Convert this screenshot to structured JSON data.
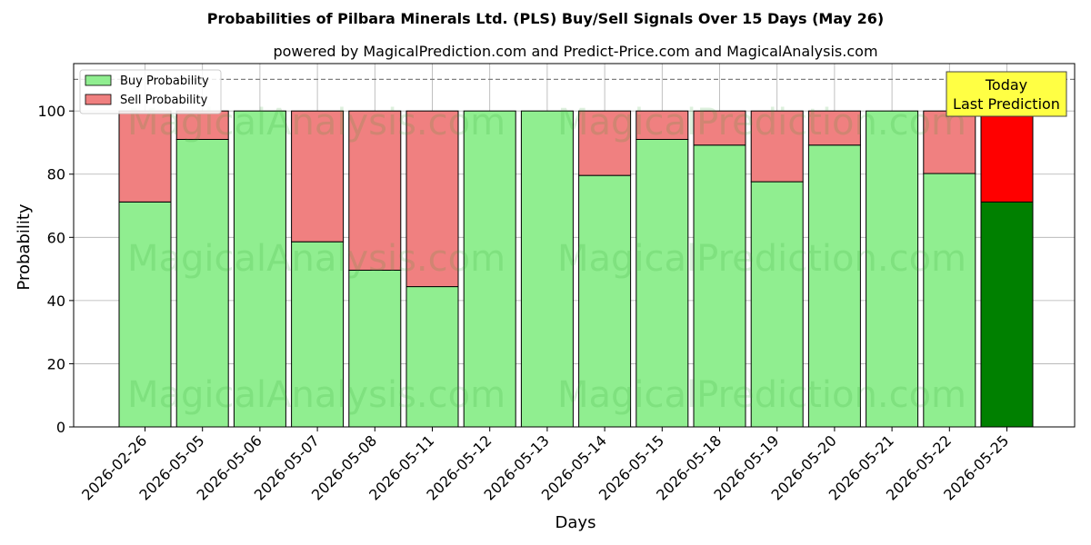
{
  "chart_data": {
    "type": "bar",
    "stacked": true,
    "title": "Probabilities of Pilbara Minerals Ltd. (PLS) Buy/Sell Signals Over 15 Days (May 26)",
    "subtitle": "powered by MagicalPrediction.com and Predict-Price.com and MagicalAnalysis.com",
    "xlabel": "Days",
    "ylabel": "Probability",
    "ylim": [
      0,
      115
    ],
    "yticks": [
      0,
      20,
      40,
      60,
      80,
      100
    ],
    "grid": true,
    "reference_line": 110,
    "legend_position": "top-left",
    "categories": [
      "2026-02-26",
      "2026-05-05",
      "2026-05-06",
      "2026-05-07",
      "2026-05-08",
      "2026-05-11",
      "2026-05-12",
      "2026-05-13",
      "2026-05-14",
      "2026-05-15",
      "2026-05-18",
      "2026-05-19",
      "2026-05-20",
      "2026-05-21",
      "2026-05-22",
      "2026-05-25"
    ],
    "series": [
      {
        "name": "Buy Probability",
        "color": "#90ee90",
        "highlight_color": "#008000",
        "values": [
          71.2,
          91,
          100,
          58.6,
          49.6,
          44.4,
          100,
          100,
          79.6,
          91,
          89.2,
          77.6,
          89.2,
          100,
          80.2,
          71.2
        ]
      },
      {
        "name": "Sell Probability",
        "color": "#f08080",
        "highlight_color": "#ff0000",
        "values": [
          28.8,
          9,
          0,
          41.4,
          50.4,
          55.6,
          0,
          0,
          20.4,
          9,
          10.8,
          22.4,
          10.8,
          0,
          19.8,
          28.8
        ]
      }
    ],
    "highlight_index": 15,
    "annotation": {
      "lines": [
        "Today",
        "Last Prediction"
      ],
      "color": "#ffff44"
    },
    "watermarks": [
      "MagicalAnalysis.com",
      "MagicalPrediction.com"
    ]
  }
}
